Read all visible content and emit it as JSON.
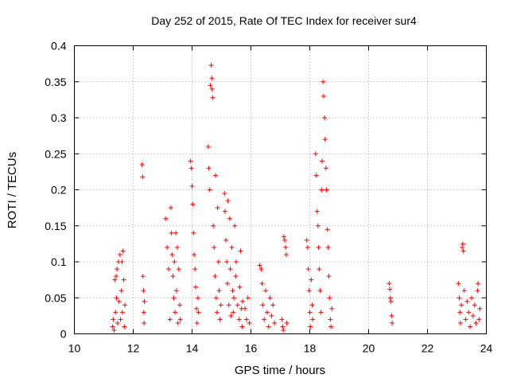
{
  "chart_data": {
    "type": "scatter",
    "title": "Day 252 of 2015, Rate Of TEC Index for receiver sur4",
    "xlabel": "GPS time / hours",
    "ylabel": "ROTI / TECUs",
    "xlim": [
      10,
      24
    ],
    "ylim": [
      0,
      0.4
    ],
    "xticks": [
      "10",
      "12",
      "14",
      "16",
      "18",
      "20",
      "22",
      "24"
    ],
    "yticks": [
      "0",
      "0.05",
      "0.1",
      "0.15",
      "0.2",
      "0.25",
      "0.3",
      "0.35",
      "0.4"
    ],
    "grid": true,
    "marker": "+",
    "color": "#ff0000",
    "series": [
      {
        "values": [
          [
            11.3,
            0.01
          ],
          [
            11.32,
            0.02
          ],
          [
            11.35,
            0.005
          ],
          [
            11.37,
            0.075
          ],
          [
            11.4,
            0.03
          ],
          [
            11.42,
            0.08
          ],
          [
            11.43,
            0.05
          ],
          [
            11.45,
            0.09
          ],
          [
            11.47,
            0.015
          ],
          [
            11.5,
            0.1
          ],
          [
            11.52,
            0.045
          ],
          [
            11.55,
            0.11
          ],
          [
            11.57,
            0.02
          ],
          [
            11.6,
            0.06
          ],
          [
            11.62,
            0.1
          ],
          [
            11.63,
            0.03
          ],
          [
            11.65,
            0.115
          ],
          [
            11.68,
            0.075
          ],
          [
            11.7,
            0.01
          ],
          [
            11.72,
            0.04
          ],
          [
            12.3,
            0.235
          ],
          [
            12.32,
            0.218
          ],
          [
            12.33,
            0.08
          ],
          [
            12.35,
            0.06
          ],
          [
            12.36,
            0.03
          ],
          [
            12.37,
            0.015
          ],
          [
            12.38,
            0.045
          ],
          [
            13.1,
            0.16
          ],
          [
            13.15,
            0.12
          ],
          [
            13.2,
            0.09
          ],
          [
            13.25,
            0.02
          ],
          [
            13.28,
            0.175
          ],
          [
            13.3,
            0.14
          ],
          [
            13.32,
            0.11
          ],
          [
            13.35,
            0.08
          ],
          [
            13.38,
            0.05
          ],
          [
            13.4,
            0.1
          ],
          [
            13.42,
            0.03
          ],
          [
            13.45,
            0.14
          ],
          [
            13.47,
            0.06
          ],
          [
            13.5,
            0.12
          ],
          [
            13.52,
            0.015
          ],
          [
            13.55,
            0.09
          ],
          [
            13.58,
            0.04
          ],
          [
            13.6,
            0.02
          ],
          [
            13.95,
            0.24
          ],
          [
            13.98,
            0.23
          ],
          [
            14.0,
            0.205
          ],
          [
            14.02,
            0.18
          ],
          [
            14.05,
            0.14
          ],
          [
            14.07,
            0.11
          ],
          [
            14.1,
            0.09
          ],
          [
            14.12,
            0.065
          ],
          [
            14.15,
            0.035
          ],
          [
            14.17,
            0.015
          ],
          [
            14.2,
            0.05
          ],
          [
            14.22,
            0.03
          ],
          [
            14.55,
            0.26
          ],
          [
            14.57,
            0.23
          ],
          [
            14.6,
            0.2
          ],
          [
            14.62,
            0.345
          ],
          [
            14.65,
            0.373
          ],
          [
            14.67,
            0.355
          ],
          [
            14.68,
            0.34
          ],
          [
            14.7,
            0.328
          ],
          [
            14.72,
            0.15
          ],
          [
            14.75,
            0.12
          ],
          [
            14.78,
            0.08
          ],
          [
            14.8,
            0.22
          ],
          [
            14.82,
            0.05
          ],
          [
            14.85,
            0.03
          ],
          [
            14.87,
            0.175
          ],
          [
            14.9,
            0.1
          ],
          [
            14.92,
            0.06
          ],
          [
            14.95,
            0.02
          ],
          [
            14.98,
            0.04
          ],
          [
            15.1,
            0.195
          ],
          [
            15.12,
            0.17
          ],
          [
            15.15,
            0.13
          ],
          [
            15.18,
            0.1
          ],
          [
            15.2,
            0.07
          ],
          [
            15.22,
            0.185
          ],
          [
            15.25,
            0.04
          ],
          [
            15.28,
            0.16
          ],
          [
            15.3,
            0.09
          ],
          [
            15.32,
            0.025
          ],
          [
            15.35,
            0.12
          ],
          [
            15.38,
            0.06
          ],
          [
            15.4,
            0.03
          ],
          [
            15.42,
            0.05
          ],
          [
            15.45,
            0.15
          ],
          [
            15.48,
            0.08
          ],
          [
            15.5,
            0.1
          ],
          [
            15.55,
            0.04
          ],
          [
            15.6,
            0.02
          ],
          [
            15.62,
            0.065
          ],
          [
            15.65,
            0.115
          ],
          [
            15.68,
            0.035
          ],
          [
            15.7,
            0.01
          ],
          [
            15.72,
            0.045
          ],
          [
            15.8,
            0.035
          ],
          [
            15.85,
            0.02
          ],
          [
            15.9,
            0.05
          ],
          [
            15.95,
            0.015
          ],
          [
            16.3,
            0.095
          ],
          [
            16.35,
            0.09
          ],
          [
            16.38,
            0.07
          ],
          [
            16.4,
            0.04
          ],
          [
            16.45,
            0.02
          ],
          [
            16.5,
            0.06
          ],
          [
            16.55,
            0.03
          ],
          [
            16.6,
            0.01
          ],
          [
            16.65,
            0.05
          ],
          [
            16.7,
            0.025
          ],
          [
            16.75,
            0.04
          ],
          [
            16.8,
            0.015
          ],
          [
            17.05,
            0.02
          ],
          [
            17.08,
            0.01
          ],
          [
            17.1,
            0.005
          ],
          [
            17.12,
            0.135
          ],
          [
            17.15,
            0.13
          ],
          [
            17.18,
            0.12
          ],
          [
            17.2,
            0.11
          ],
          [
            17.22,
            0.015
          ],
          [
            17.9,
            0.13
          ],
          [
            17.93,
            0.12
          ],
          [
            17.95,
            0.09
          ],
          [
            17.98,
            0.06
          ],
          [
            18.0,
            0.03
          ],
          [
            18.02,
            0.01
          ],
          [
            18.05,
            0.075
          ],
          [
            18.08,
            0.04
          ],
          [
            18.1,
            0.02
          ],
          [
            18.2,
            0.25
          ],
          [
            18.22,
            0.22
          ],
          [
            18.25,
            0.17
          ],
          [
            18.28,
            0.15
          ],
          [
            18.3,
            0.12
          ],
          [
            18.32,
            0.09
          ],
          [
            18.35,
            0.06
          ],
          [
            18.38,
            0.03
          ],
          [
            18.4,
            0.2
          ],
          [
            18.42,
            0.24
          ],
          [
            18.45,
            0.35
          ],
          [
            18.47,
            0.33
          ],
          [
            18.5,
            0.3
          ],
          [
            18.52,
            0.27
          ],
          [
            18.55,
            0.23
          ],
          [
            18.57,
            0.2
          ],
          [
            18.6,
            0.145
          ],
          [
            18.62,
            0.12
          ],
          [
            18.65,
            0.08
          ],
          [
            18.67,
            0.05
          ],
          [
            18.7,
            0.02
          ],
          [
            18.72,
            0.01
          ],
          [
            18.75,
            0.035
          ],
          [
            20.7,
            0.07
          ],
          [
            20.72,
            0.062
          ],
          [
            20.74,
            0.05
          ],
          [
            20.76,
            0.045
          ],
          [
            20.78,
            0.025
          ],
          [
            20.8,
            0.015
          ],
          [
            23.05,
            0.07
          ],
          [
            23.08,
            0.05
          ],
          [
            23.1,
            0.03
          ],
          [
            23.12,
            0.015
          ],
          [
            23.15,
            0.04
          ],
          [
            23.18,
            0.12
          ],
          [
            23.2,
            0.125
          ],
          [
            23.22,
            0.115
          ],
          [
            23.25,
            0.06
          ],
          [
            23.3,
            0.02
          ],
          [
            23.35,
            0.045
          ],
          [
            23.4,
            0.03
          ],
          [
            23.45,
            0.01
          ],
          [
            23.5,
            0.05
          ],
          [
            23.55,
            0.025
          ],
          [
            23.6,
            0.04
          ],
          [
            23.65,
            0.015
          ],
          [
            23.7,
            0.06
          ],
          [
            23.72,
            0.07
          ],
          [
            23.75,
            0.02
          ],
          [
            23.78,
            0.035
          ]
        ]
      }
    ]
  }
}
